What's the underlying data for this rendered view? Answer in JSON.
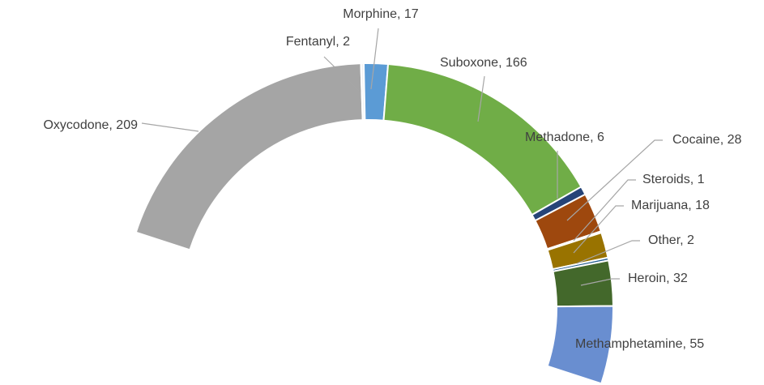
{
  "chart_data": {
    "type": "doughnut",
    "categories": [
      "Oxycodone",
      "Fentanyl",
      "Morphine",
      "Suboxone",
      "Methadone",
      "Cocaine",
      "Steroids",
      "Marijuana",
      "Other",
      "Heroin",
      "Methamphetamine"
    ],
    "values": [
      209,
      2,
      17,
      166,
      6,
      28,
      1,
      18,
      2,
      32,
      55
    ],
    "value_labels": [
      "Oxycodone, 209",
      "Fentanyl, 2",
      "Morphine, 17",
      "Suboxone, 166",
      "Methadone, 6",
      "Cocaine, 28",
      "Steroids, 1",
      "Marijuana, 18",
      "Other, 2",
      "Heroin, 32",
      "Methamphetamine, 55"
    ],
    "colors": [
      "#a5a5a5",
      "#f2f2f2",
      "#5b9bd5",
      "#70ad47",
      "#264478",
      "#9e480e",
      "#636363",
      "#997300",
      "#255e91",
      "#43682b",
      "#698ed0"
    ]
  }
}
